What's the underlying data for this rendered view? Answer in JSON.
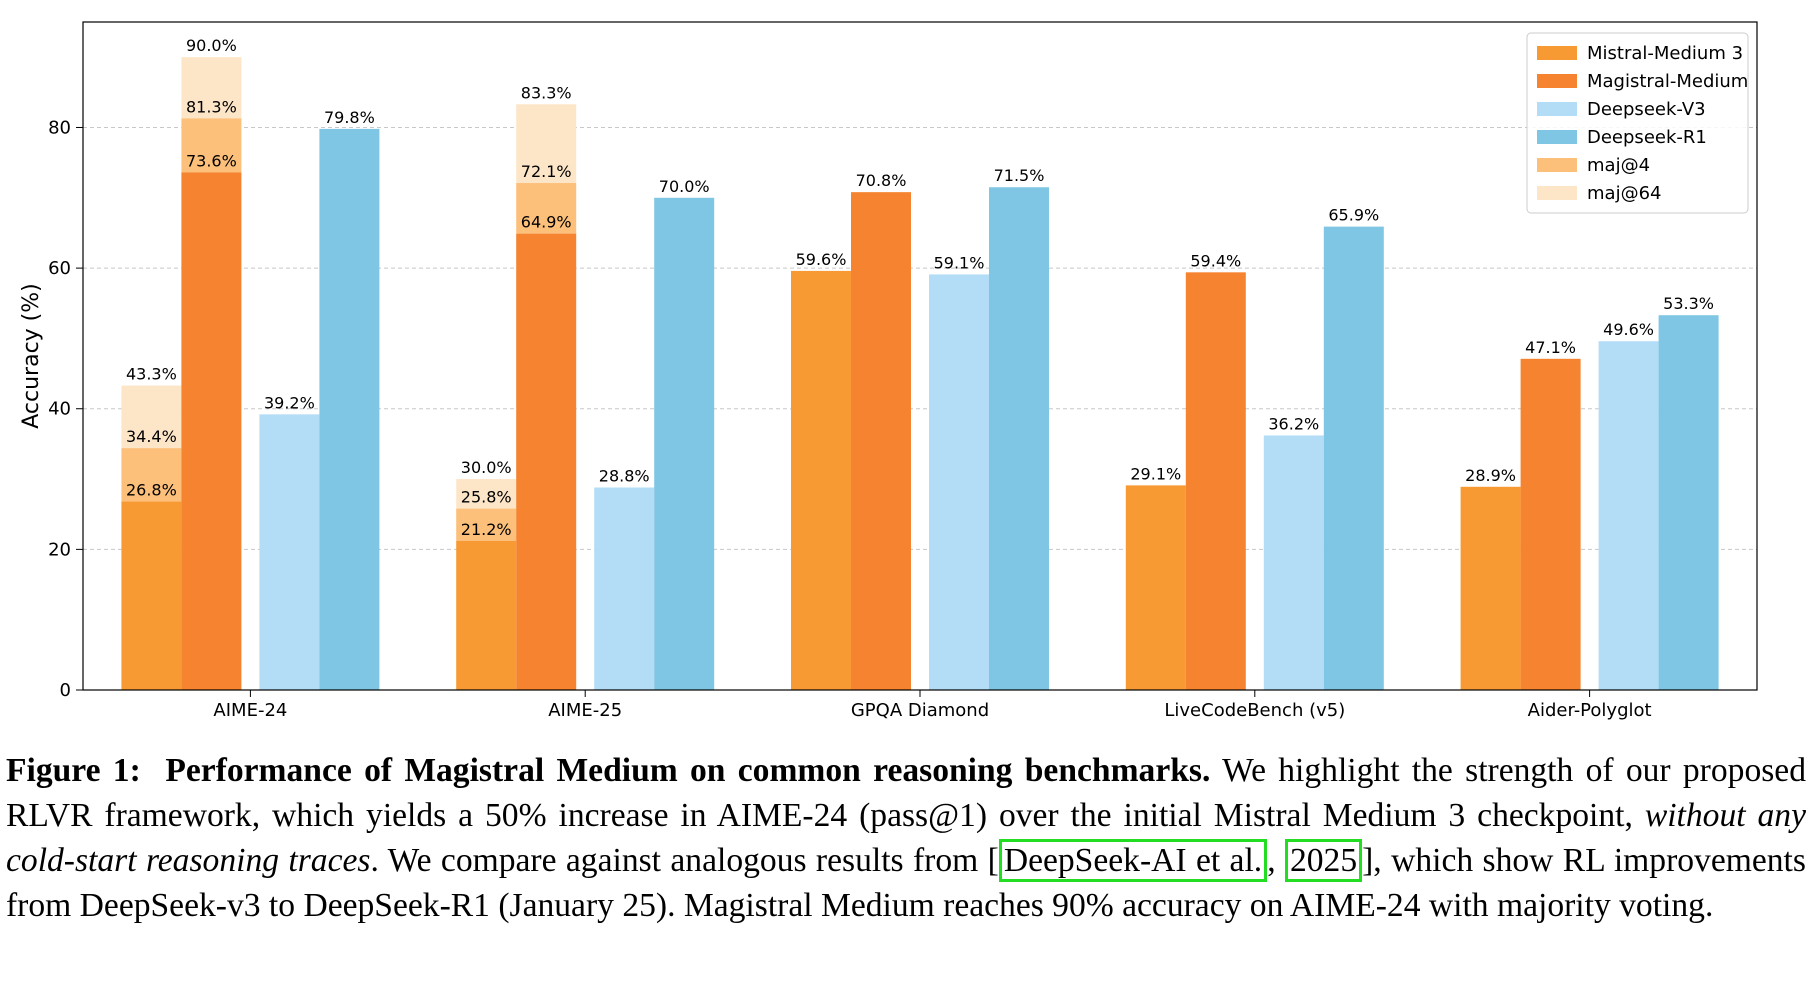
{
  "chart_data": {
    "type": "bar",
    "ylabel": "Accuracy (%)",
    "xlabel": "",
    "ylim": [
      0,
      95
    ],
    "yticks": [
      0,
      20,
      40,
      60,
      80
    ],
    "grid": "horizontal dashed",
    "legend_position": "top-right",
    "categories": [
      "AIME-24",
      "AIME-25",
      "GPQA Diamond",
      "LiveCodeBench (v5)",
      "Aider-Polyglot"
    ],
    "series": [
      {
        "name": "Mistral-Medium 3",
        "color": "#f89a33",
        "values": [
          26.8,
          21.2,
          59.6,
          29.1,
          28.9
        ],
        "maj4": [
          34.4,
          25.8,
          null,
          null,
          null
        ],
        "maj64": [
          43.3,
          30.0,
          null,
          null,
          null
        ]
      },
      {
        "name": "Magistral-Medium",
        "color": "#f5832f",
        "values": [
          73.6,
          64.9,
          70.8,
          59.4,
          47.1
        ],
        "maj4": [
          81.3,
          72.1,
          null,
          null,
          null
        ],
        "maj64": [
          90.0,
          83.3,
          null,
          null,
          null
        ]
      },
      {
        "name": "Deepseek-V3",
        "color": "#b3dcf7",
        "values": [
          39.2,
          28.8,
          59.1,
          36.2,
          49.6
        ]
      },
      {
        "name": "Deepseek-R1",
        "color": "#7ec6e3",
        "values": [
          79.8,
          70.0,
          71.5,
          65.9,
          53.3
        ]
      }
    ],
    "overlay_legend": [
      {
        "name": "maj@4",
        "color": "#fcc07a"
      },
      {
        "name": "maj@64",
        "color": "#fde6c8"
      }
    ],
    "value_labels": {
      "Mistral-Medium 3": [
        "26.8%",
        "21.2%",
        "59.6%",
        "29.1%",
        "28.9%"
      ],
      "Mistral-Medium 3 maj@4": [
        "34.4%",
        "25.8%",
        "",
        "",
        ""
      ],
      "Mistral-Medium 3 maj@64": [
        "43.3%",
        "30.0%",
        "",
        "",
        ""
      ],
      "Magistral-Medium": [
        "73.6%",
        "64.9%",
        "70.8%",
        "59.4%",
        "47.1%"
      ],
      "Magistral-Medium maj@4": [
        "81.3%",
        "72.1%",
        "",
        "",
        ""
      ],
      "Magistral-Medium maj@64": [
        "90.0%",
        "83.3%",
        "",
        "",
        ""
      ],
      "Deepseek-V3": [
        "39.2%",
        "28.8%",
        "59.1%",
        "36.2%",
        "49.6%"
      ],
      "Deepseek-R1": [
        "79.8%",
        "70.0%",
        "71.5%",
        "65.9%",
        "53.3%"
      ]
    }
  },
  "caption": {
    "figure_label": "Figure 1:",
    "title": "Performance of Magistral Medium on common reasoning benchmarks.",
    "text_1": " We highlight the strength of our proposed RLVR framework, which yields a 50% increase in AIME-24 (pass@1) over the initial Mistral Medium 3 checkpoint, ",
    "italic": "without any cold-start reasoning traces",
    "text_2": ". We compare against analogous results from [",
    "cite_authors": "DeepSeek-AI et al.",
    "cite_sep": ", ",
    "cite_year": "2025",
    "text_3": "], which show RL improvements from DeepSeek-v3 to DeepSeek-R1 (January 25). Magistral Medium reaches 90% accuracy on AIME-24 with majority voting."
  }
}
